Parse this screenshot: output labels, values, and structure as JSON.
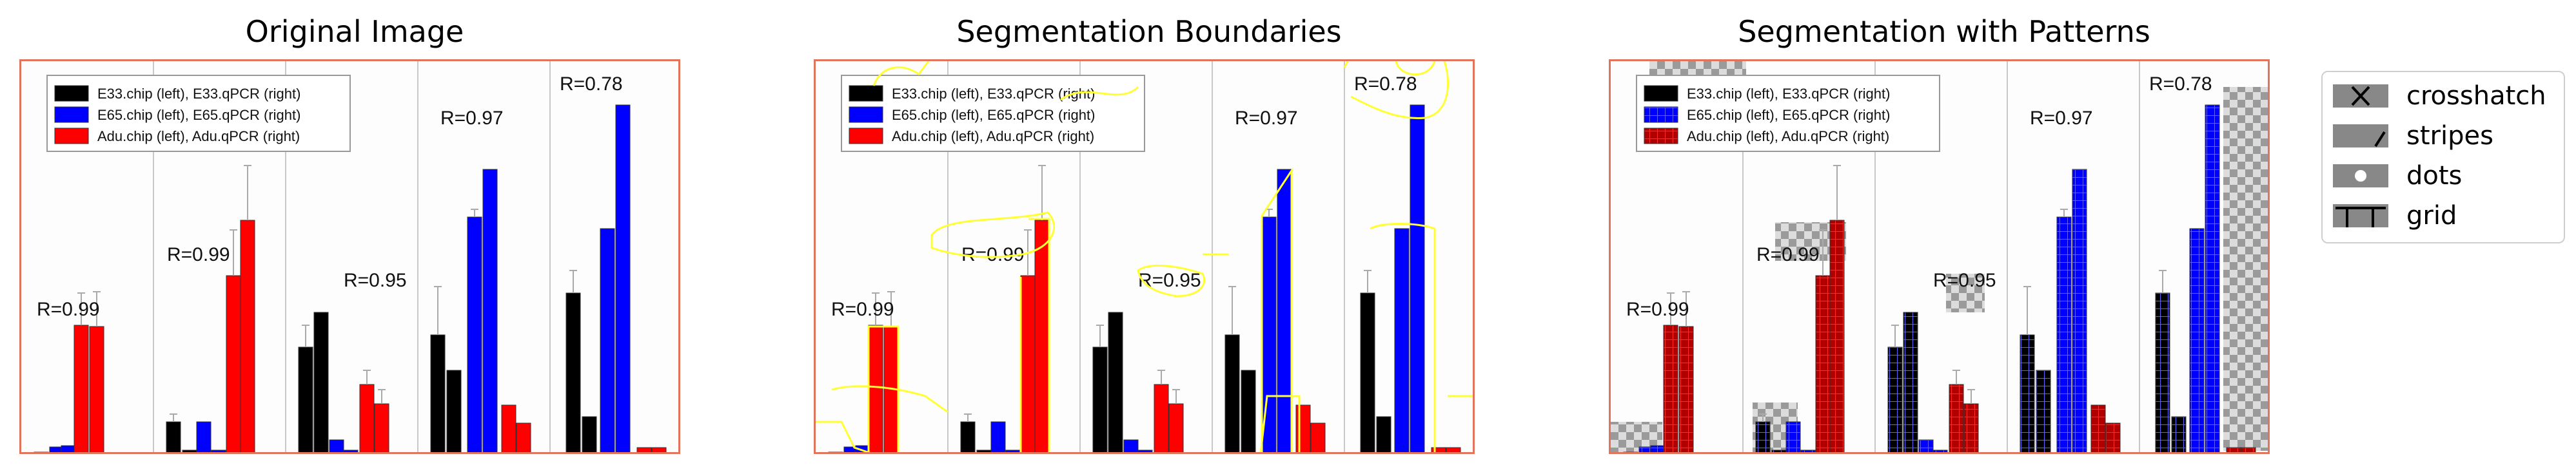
{
  "titles": {
    "original": "Original Image",
    "boundaries": "Segmentation Boundaries",
    "patterns": "Segmentation with Patterns"
  },
  "inner_legend": [
    {
      "label": "E33.chip (left), E33.qPCR (right)",
      "color": "#000000"
    },
    {
      "label": "E65.chip (left), E65.qPCR (right)",
      "color": "#0000ff"
    },
    {
      "label": "Adu.chip (left), Adu.qPCR (right)",
      "color": "#ff0000"
    }
  ],
  "r_labels": [
    "R=0.99",
    "R=0.99",
    "R=0.95",
    "R=0.97",
    "R=0.78"
  ],
  "pattern_legend": [
    {
      "label": "crosshatch",
      "icon": "crosshatch-icon"
    },
    {
      "label": "stripes",
      "icon": "stripes-icon"
    },
    {
      "label": "dots",
      "icon": "dots-icon"
    },
    {
      "label": "grid",
      "icon": "grid-icon"
    }
  ],
  "colors": {
    "border": "#e2735c",
    "boundary": "#ffff33",
    "black": "#000000",
    "blue": "#0000ff",
    "red": "#ff0000",
    "dark_red": "#b00000"
  }
}
